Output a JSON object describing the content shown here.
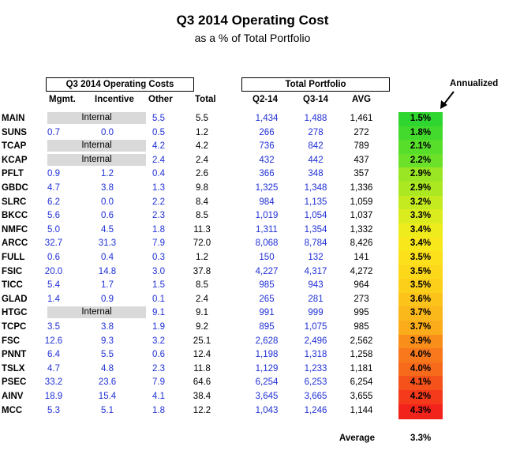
{
  "title": "Q3 2014 Operating Cost",
  "subtitle": "as a % of Total Portfolio",
  "groups": {
    "costs": "Q3 2014 Operating Costs",
    "portfolio": "Total Portfolio"
  },
  "annotation": "Annualized",
  "columns": [
    "Mgmt.",
    "Incentive",
    "Other",
    "Total",
    "Q2-14",
    "Q3-14",
    "AVG"
  ],
  "rows": [
    {
      "ticker": "MAIN",
      "mgmt": "",
      "incentive": "",
      "internal": "Internal",
      "other": "5.5",
      "total": "5.5",
      "q2": "1,434",
      "q3": "1,488",
      "avg": "1,461",
      "annualized": "1.5%",
      "color": "#2fd62f"
    },
    {
      "ticker": "SUNS",
      "mgmt": "0.7",
      "incentive": "0.0",
      "internal": "",
      "other": "0.5",
      "total": "1.2",
      "q2": "266",
      "q3": "278",
      "avg": "272",
      "annualized": "1.8%",
      "color": "#43da2d"
    },
    {
      "ticker": "TCAP",
      "mgmt": "",
      "incentive": "",
      "internal": "Internal",
      "other": "4.2",
      "total": "4.2",
      "q2": "736",
      "q3": "842",
      "avg": "789",
      "annualized": "2.1%",
      "color": "#57de2b"
    },
    {
      "ticker": "KCAP",
      "mgmt": "",
      "incentive": "",
      "internal": "Internal",
      "other": "2.4",
      "total": "2.4",
      "q2": "432",
      "q3": "442",
      "avg": "437",
      "annualized": "2.2%",
      "color": "#6be229"
    },
    {
      "ticker": "PFLT",
      "mgmt": "0.9",
      "incentive": "1.2",
      "internal": "",
      "other": "0.4",
      "total": "2.6",
      "q2": "366",
      "q3": "348",
      "avg": "357",
      "annualized": "2.9%",
      "color": "#9be624"
    },
    {
      "ticker": "GBDC",
      "mgmt": "4.7",
      "incentive": "3.8",
      "internal": "",
      "other": "1.3",
      "total": "9.8",
      "q2": "1,325",
      "q3": "1,348",
      "avg": "1,336",
      "annualized": "2.9%",
      "color": "#abe822"
    },
    {
      "ticker": "SLRC",
      "mgmt": "6.2",
      "incentive": "0.0",
      "internal": "",
      "other": "2.2",
      "total": "8.4",
      "q2": "984",
      "q3": "1,135",
      "avg": "1,059",
      "annualized": "3.2%",
      "color": "#c4ea20"
    },
    {
      "ticker": "BKCC",
      "mgmt": "5.6",
      "incentive": "0.6",
      "internal": "",
      "other": "2.3",
      "total": "8.5",
      "q2": "1,019",
      "q3": "1,054",
      "avg": "1,037",
      "annualized": "3.3%",
      "color": "#dbec1e"
    },
    {
      "ticker": "NMFC",
      "mgmt": "5.0",
      "incentive": "4.5",
      "internal": "",
      "other": "1.8",
      "total": "11.3",
      "q2": "1,311",
      "q3": "1,354",
      "avg": "1,332",
      "annualized": "3.4%",
      "color": "#eeec1c"
    },
    {
      "ticker": "ARCC",
      "mgmt": "32.7",
      "incentive": "31.3",
      "internal": "",
      "other": "7.9",
      "total": "72.0",
      "q2": "8,068",
      "q3": "8,784",
      "avg": "8,426",
      "annualized": "3.4%",
      "color": "#f8e81b"
    },
    {
      "ticker": "FULL",
      "mgmt": "0.6",
      "incentive": "0.4",
      "internal": "",
      "other": "0.3",
      "total": "1.2",
      "q2": "150",
      "q3": "132",
      "avg": "141",
      "annualized": "3.5%",
      "color": "#fbe01b"
    },
    {
      "ticker": "FSIC",
      "mgmt": "20.0",
      "incentive": "14.8",
      "internal": "",
      "other": "3.0",
      "total": "37.8",
      "q2": "4,227",
      "q3": "4,317",
      "avg": "4,272",
      "annualized": "3.5%",
      "color": "#fcd81b"
    },
    {
      "ticker": "TICC",
      "mgmt": "5.4",
      "incentive": "1.7",
      "internal": "",
      "other": "1.5",
      "total": "8.5",
      "q2": "985",
      "q3": "943",
      "avg": "964",
      "annualized": "3.5%",
      "color": "#fccf1b"
    },
    {
      "ticker": "GLAD",
      "mgmt": "1.4",
      "incentive": "0.9",
      "internal": "",
      "other": "0.1",
      "total": "2.4",
      "q2": "265",
      "q3": "281",
      "avg": "273",
      "annualized": "3.6%",
      "color": "#fcc41b"
    },
    {
      "ticker": "HTGC",
      "mgmt": "",
      "incentive": "",
      "internal": "Internal",
      "other": "9.1",
      "total": "9.1",
      "q2": "991",
      "q3": "999",
      "avg": "995",
      "annualized": "3.7%",
      "color": "#fbb81b"
    },
    {
      "ticker": "TCPC",
      "mgmt": "3.5",
      "incentive": "3.8",
      "internal": "",
      "other": "1.9",
      "total": "9.2",
      "q2": "895",
      "q3": "1,075",
      "avg": "985",
      "annualized": "3.7%",
      "color": "#fbac1b"
    },
    {
      "ticker": "FSC",
      "mgmt": "12.6",
      "incentive": "9.3",
      "internal": "",
      "other": "3.2",
      "total": "25.1",
      "q2": "2,628",
      "q3": "2,496",
      "avg": "2,562",
      "annualized": "3.9%",
      "color": "#f98e1b"
    },
    {
      "ticker": "PNNT",
      "mgmt": "6.4",
      "incentive": "5.5",
      "internal": "",
      "other": "0.6",
      "total": "12.4",
      "q2": "1,198",
      "q3": "1,318",
      "avg": "1,258",
      "annualized": "4.0%",
      "color": "#f8781b"
    },
    {
      "ticker": "TSLX",
      "mgmt": "4.7",
      "incentive": "4.8",
      "internal": "",
      "other": "2.3",
      "total": "11.8",
      "q2": "1,129",
      "q3": "1,233",
      "avg": "1,181",
      "annualized": "4.0%",
      "color": "#f7691b"
    },
    {
      "ticker": "PSEC",
      "mgmt": "33.2",
      "incentive": "23.6",
      "internal": "",
      "other": "7.9",
      "total": "64.6",
      "q2": "6,254",
      "q3": "6,253",
      "avg": "6,254",
      "annualized": "4.1%",
      "color": "#f5521b"
    },
    {
      "ticker": "AINV",
      "mgmt": "18.9",
      "incentive": "15.4",
      "internal": "",
      "other": "4.1",
      "total": "38.4",
      "q2": "3,645",
      "q3": "3,665",
      "avg": "3,655",
      "annualized": "4.2%",
      "color": "#f43a1b"
    },
    {
      "ticker": "MCC",
      "mgmt": "5.3",
      "incentive": "5.1",
      "internal": "",
      "other": "1.8",
      "total": "12.2",
      "q2": "1,043",
      "q3": "1,246",
      "avg": "1,144",
      "annualized": "4.3%",
      "color": "#f2231b"
    }
  ],
  "footer": {
    "label": "Average",
    "value": "3.3%"
  }
}
